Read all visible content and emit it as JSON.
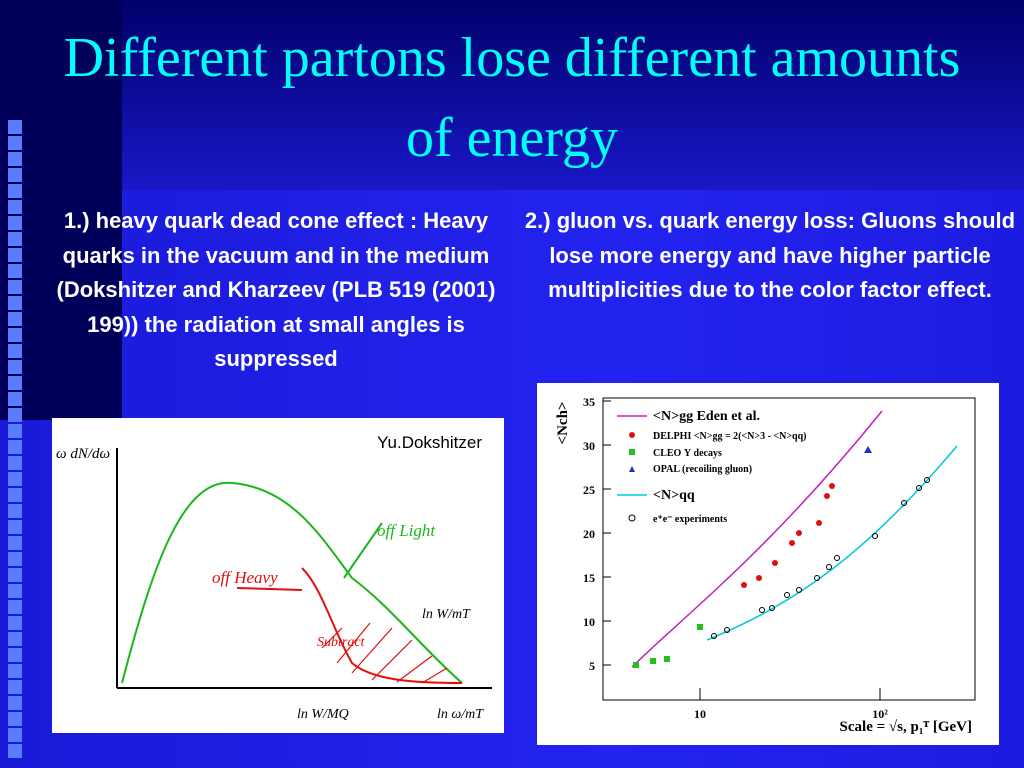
{
  "title": "Different partons lose different amounts of energy",
  "point1": "1.) heavy quark dead cone effect : Heavy quarks in the vacuum and in the medium (Dokshitzer and Kharzeev (PLB 519 (2001) 199)) the radiation at small angles is suppressed",
  "point2": "2.) gluon vs. quark energy loss: Gluons should lose more energy and have higher particle multiplicities due to the color factor effect.",
  "sketch": {
    "credit": "Yu.Dokshitzer",
    "y_label": "ω dN/dω",
    "labels": [
      "off Light",
      "off Heavy",
      "Subtract",
      "ln W/mT",
      "ln W/MQ",
      "ln ω/mT"
    ]
  },
  "plot": {
    "y_label": "<Nch>",
    "yticks": [
      5,
      10,
      15,
      20,
      25,
      30,
      35
    ],
    "xticks": [
      10,
      {
        "value": 100,
        "label": "10²"
      }
    ],
    "x_label": "Scale = √s, p₁ᵀ [GeV]",
    "legend": [
      "<N>gg Eden et al.",
      "DELPHI <N>gg = 2(<N>3 - <N>qq)",
      "CLEO Υ decays",
      "OPAL (recoiling gluon)",
      "<N>qq",
      "e⁺e⁻ experiments"
    ]
  }
}
